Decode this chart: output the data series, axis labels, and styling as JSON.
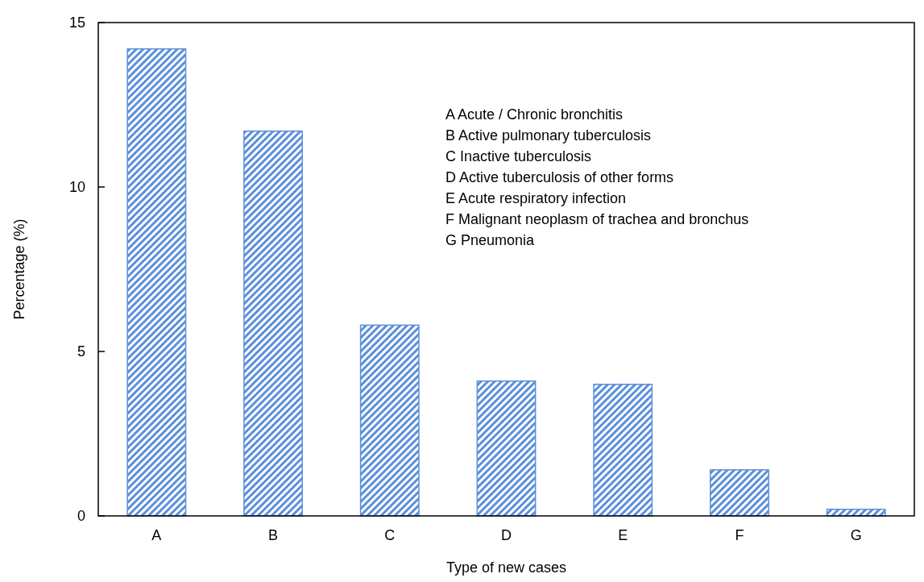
{
  "chart_data": {
    "type": "bar",
    "xlabel": "Type of new cases",
    "ylabel": "Percentage (%)",
    "categories": [
      "A",
      "B",
      "C",
      "D",
      "E",
      "F",
      "G"
    ],
    "values": [
      14.2,
      11.7,
      5.8,
      4.1,
      4.0,
      1.4,
      0.2
    ],
    "color": "#5b8fd9",
    "ylim": [
      0,
      15
    ],
    "yticks": [
      0,
      5,
      10,
      15
    ],
    "grid": false,
    "annotations": [
      "A  Acute / Chronic bronchitis",
      "B  Active pulmonary tuberculosis",
      "C  Inactive tuberculosis",
      "D  Active tuberculosis of other forms",
      "E  Acute respiratory infection",
      "F  Malignant neoplasm of trachea and bronchus",
      "G  Pneumonia"
    ]
  }
}
